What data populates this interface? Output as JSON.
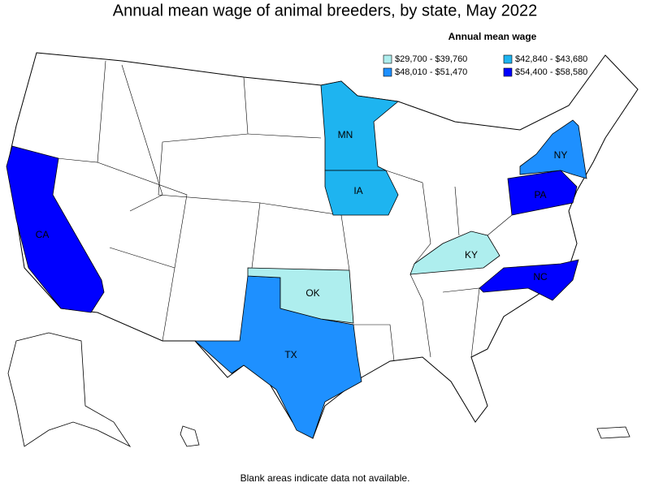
{
  "title": "Annual mean wage of animal breeders, by state, May 2022",
  "legend": {
    "title": "Annual mean wage",
    "items": [
      {
        "label": "$29,700 - $39,760",
        "color": "#aeeeee"
      },
      {
        "label": "$42,840 - $43,680",
        "color": "#1eb4f0"
      },
      {
        "label": "$48,010 - $51,470",
        "color": "#1e90ff"
      },
      {
        "label": "$54,400 - $58,580",
        "color": "#0000ff"
      }
    ]
  },
  "states": [
    {
      "label": "CA",
      "color": "#0000ff"
    },
    {
      "label": "TX",
      "color": "#1e90ff"
    },
    {
      "label": "OK",
      "color": "#aeeeee"
    },
    {
      "label": "KY",
      "color": "#aeeeee"
    },
    {
      "label": "MN",
      "color": "#1eb4f0"
    },
    {
      "label": "IA",
      "color": "#1eb4f0"
    },
    {
      "label": "NY",
      "color": "#1e90ff"
    },
    {
      "label": "PA",
      "color": "#0000ff"
    },
    {
      "label": "NC",
      "color": "#0000ff"
    }
  ],
  "note": "Blank areas indicate data not available."
}
